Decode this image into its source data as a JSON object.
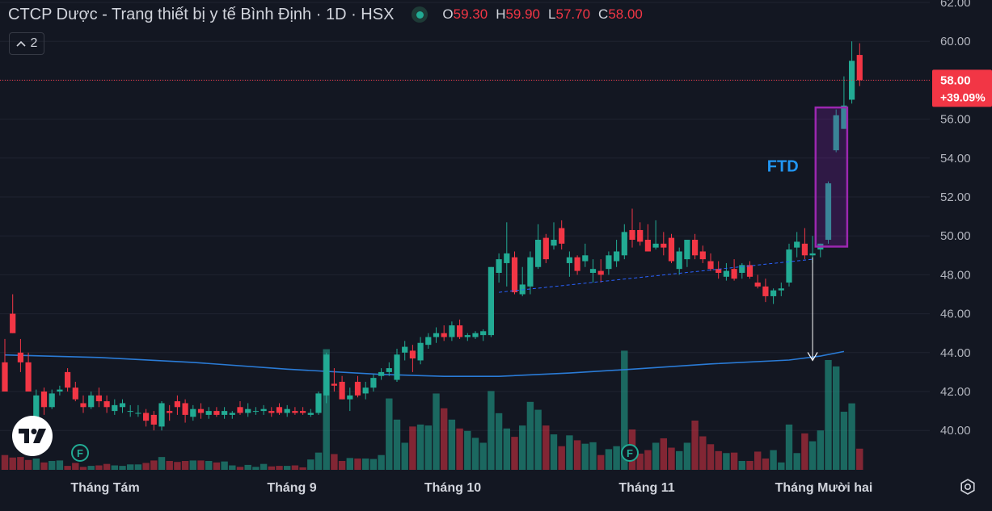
{
  "header": {
    "title": "CTCP Dược - Trang thiết bị y tế Bình Định · 1D · HSX",
    "open_label": "O",
    "open_value": "59.30",
    "high_label": "H",
    "high_value": "59.90",
    "low_label": "L",
    "low_value": "57.70",
    "close_label": "C",
    "close_value": "58.00"
  },
  "toolbar": {
    "collapse_count": "2"
  },
  "chart_data": {
    "type": "candlestick",
    "x_labels": [
      "Tháng Tám",
      "Tháng 9",
      "Tháng 10",
      "Tháng 11",
      "Tháng Mười hai"
    ],
    "ylim": [
      38,
      62
    ],
    "y_ticks": [
      "40.00",
      "42.00",
      "44.00",
      "46.00",
      "48.00",
      "50.00",
      "52.00",
      "54.00",
      "56.00",
      "58.00",
      "60.00",
      "62.00"
    ],
    "last_price": "58.00",
    "last_change": "+39.09%",
    "annotation": "FTD",
    "candles": [
      [
        43.5,
        44.7,
        42.0,
        42.0
      ],
      [
        46.0,
        47.0,
        45.0,
        45.0
      ],
      [
        44.0,
        44.7,
        43.0,
        43.5
      ],
      [
        43.5,
        44.0,
        42.0,
        42.0
      ],
      [
        40.5,
        42.1,
        40.3,
        41.8
      ],
      [
        42.0,
        42.2,
        40.8,
        41.2
      ],
      [
        41.2,
        42.1,
        41.1,
        41.9
      ],
      [
        42.0,
        42.3,
        41.8,
        42.1
      ],
      [
        43.0,
        43.2,
        42.0,
        42.2
      ],
      [
        42.2,
        42.5,
        41.5,
        41.6
      ],
      [
        41.4,
        41.8,
        40.9,
        41.2
      ],
      [
        41.2,
        42.0,
        41.1,
        41.8
      ],
      [
        41.8,
        42.2,
        41.2,
        41.5
      ],
      [
        41.5,
        41.8,
        40.9,
        41.2
      ],
      [
        41.0,
        41.6,
        40.8,
        41.3
      ],
      [
        41.2,
        41.6,
        40.9,
        41.4
      ],
      [
        41.0,
        41.3,
        40.7,
        41.0
      ],
      [
        40.9,
        41.3,
        40.7,
        40.9
      ],
      [
        40.9,
        41.1,
        40.2,
        40.5
      ],
      [
        40.8,
        41.0,
        40.0,
        40.3
      ],
      [
        40.2,
        41.5,
        40.0,
        41.4
      ],
      [
        41.0,
        41.3,
        40.5,
        40.9
      ],
      [
        41.5,
        41.8,
        40.8,
        41.2
      ],
      [
        41.4,
        41.6,
        40.4,
        40.8
      ],
      [
        40.7,
        41.3,
        40.5,
        41.1
      ],
      [
        41.1,
        41.4,
        40.6,
        40.9
      ],
      [
        40.8,
        41.2,
        40.6,
        41.0
      ],
      [
        41.0,
        41.2,
        40.7,
        40.8
      ],
      [
        40.8,
        41.2,
        40.6,
        41.0
      ],
      [
        40.8,
        41.0,
        40.6,
        40.9
      ],
      [
        41.2,
        41.5,
        40.8,
        40.9
      ],
      [
        40.9,
        41.4,
        40.7,
        41.1
      ],
      [
        41.0,
        41.2,
        40.8,
        41.0
      ],
      [
        41.0,
        41.3,
        40.8,
        41.1
      ],
      [
        41.0,
        41.2,
        40.7,
        40.9
      ],
      [
        41.2,
        41.4,
        40.8,
        40.9
      ],
      [
        40.9,
        41.3,
        40.7,
        41.1
      ],
      [
        41.0,
        41.2,
        40.8,
        40.9
      ],
      [
        41.0,
        41.2,
        40.8,
        40.9
      ],
      [
        40.8,
        41.1,
        40.7,
        40.9
      ],
      [
        40.9,
        42.0,
        40.8,
        41.9
      ],
      [
        41.8,
        44.0,
        41.4,
        43.9
      ],
      [
        42.4,
        43.2,
        42.0,
        42.3
      ],
      [
        42.5,
        42.8,
        41.6,
        41.6
      ],
      [
        41.6,
        42.2,
        41.0,
        41.8
      ],
      [
        42.5,
        42.8,
        41.7,
        41.8
      ],
      [
        41.9,
        42.5,
        41.6,
        42.2
      ],
      [
        42.2,
        42.9,
        42.0,
        42.7
      ],
      [
        42.8,
        43.2,
        42.6,
        43.0
      ],
      [
        43.0,
        43.5,
        42.8,
        43.2
      ],
      [
        42.6,
        44.2,
        42.5,
        43.9
      ],
      [
        44.0,
        44.6,
        43.6,
        44.3
      ],
      [
        44.1,
        44.4,
        43.0,
        43.7
      ],
      [
        43.6,
        44.8,
        43.4,
        44.5
      ],
      [
        44.4,
        45.0,
        44.2,
        44.8
      ],
      [
        44.8,
        45.3,
        44.5,
        45.0
      ],
      [
        45.0,
        45.4,
        44.6,
        44.8
      ],
      [
        44.8,
        45.6,
        44.6,
        45.4
      ],
      [
        45.4,
        45.7,
        44.7,
        44.8
      ],
      [
        44.8,
        45.0,
        44.6,
        44.9
      ],
      [
        44.8,
        45.1,
        44.7,
        45.0
      ],
      [
        44.9,
        45.2,
        44.6,
        45.1
      ],
      [
        44.9,
        48.4,
        44.8,
        48.4
      ],
      [
        48.1,
        49.1,
        47.6,
        48.8
      ],
      [
        48.6,
        50.7,
        47.4,
        49.1
      ],
      [
        48.9,
        49.2,
        47.0,
        47.1
      ],
      [
        47.0,
        48.4,
        46.9,
        47.5
      ],
      [
        47.4,
        49.2,
        47.0,
        48.9
      ],
      [
        48.4,
        50.6,
        48.3,
        49.8
      ],
      [
        49.9,
        50.1,
        48.6,
        48.8
      ],
      [
        49.5,
        50.7,
        49.3,
        49.8
      ],
      [
        50.4,
        50.8,
        49.3,
        49.6
      ],
      [
        48.6,
        49.2,
        47.9,
        48.9
      ],
      [
        48.9,
        49.0,
        48.0,
        48.2
      ],
      [
        48.7,
        49.6,
        48.4,
        49.0
      ],
      [
        48.1,
        48.8,
        47.6,
        48.3
      ],
      [
        48.2,
        48.8,
        47.6,
        48.0
      ],
      [
        48.3,
        49.2,
        48.0,
        49.0
      ],
      [
        48.7,
        49.8,
        48.4,
        49.2
      ],
      [
        49.0,
        50.6,
        48.8,
        50.2
      ],
      [
        50.3,
        51.4,
        49.4,
        49.8
      ],
      [
        50.3,
        50.7,
        49.5,
        49.7
      ],
      [
        49.8,
        50.6,
        49.2,
        49.2
      ],
      [
        49.4,
        50.8,
        49.3,
        49.6
      ],
      [
        49.6,
        50.2,
        49.0,
        49.4
      ],
      [
        49.9,
        50.1,
        48.6,
        48.7
      ],
      [
        48.3,
        49.4,
        48.0,
        49.2
      ],
      [
        48.8,
        49.7,
        48.4,
        49.8
      ],
      [
        49.8,
        50.1,
        48.8,
        49.0
      ],
      [
        49.2,
        49.5,
        48.6,
        48.8
      ],
      [
        48.7,
        49.1,
        48.2,
        48.3
      ],
      [
        48.3,
        48.7,
        47.8,
        48.1
      ],
      [
        47.9,
        48.6,
        47.7,
        48.2
      ],
      [
        48.3,
        48.8,
        47.7,
        47.8
      ],
      [
        48.1,
        48.6,
        47.8,
        48.5
      ],
      [
        48.5,
        48.7,
        47.8,
        47.9
      ],
      [
        47.6,
        48.0,
        47.3,
        47.4
      ],
      [
        47.4,
        47.8,
        46.6,
        46.9
      ],
      [
        46.9,
        47.3,
        46.5,
        47.2
      ],
      [
        47.2,
        47.6,
        46.9,
        47.3
      ],
      [
        47.6,
        49.6,
        47.4,
        49.3
      ],
      [
        49.4,
        50.2,
        48.9,
        49.7
      ],
      [
        49.6,
        50.4,
        48.8,
        49.0
      ],
      [
        49.0,
        50.0,
        48.6,
        49.1
      ],
      [
        49.3,
        49.6,
        48.9,
        49.6
      ],
      [
        49.8,
        52.8,
        49.6,
        52.7
      ],
      [
        54.4,
        56.5,
        54.3,
        56.2
      ],
      [
        55.5,
        58.2,
        55.5,
        56.7
      ],
      [
        57.0,
        60.0,
        56.8,
        59.0
      ],
      [
        59.3,
        59.9,
        57.7,
        58.0
      ]
    ],
    "volumes": [
      3.0,
      2.5,
      2.6,
      2.0,
      2.3,
      1.5,
      1.8,
      1.9,
      0.8,
      1.4,
      0.6,
      0.8,
      0.9,
      1.2,
      0.9,
      0.8,
      1.1,
      1.1,
      1.4,
      1.9,
      2.6,
      1.8,
      1.6,
      1.8,
      1.9,
      1.9,
      1.8,
      1.5,
      1.7,
      0.9,
      0.6,
      1.0,
      0.6,
      1.2,
      0.7,
      0.8,
      0.8,
      0.9,
      0.5,
      2.1,
      3.5,
      24.5,
      3.2,
      1.8,
      2.4,
      2.3,
      2.3,
      2.2,
      3.0,
      14.5,
      10.2,
      5.5,
      8.8,
      9.2,
      9.0,
      15.5,
      12.5,
      10.2,
      8.4,
      7.9,
      6.5,
      5.5,
      16.0,
      11.5,
      8.4,
      6.7,
      9.0,
      13.8,
      12.2,
      9.0,
      7.2,
      4.8,
      7.0,
      6.0,
      5.3,
      5.6,
      3.0,
      4.2,
      4.8,
      24.2,
      8.2,
      3.3,
      4.0,
      5.5,
      6.4,
      4.5,
      3.8,
      5.5,
      10.0,
      6.8,
      5.2,
      3.8,
      3.4,
      3.5,
      1.8,
      1.8,
      3.7,
      2.3,
      4.0,
      1.5,
      9.2,
      3.4,
      7.4,
      5.8,
      8.0,
      22.3,
      21.0,
      11.8,
      13.5,
      4.3
    ],
    "ma": [
      [
        0,
        43.88
      ],
      [
        12,
        43.75
      ],
      [
        24,
        43.5
      ],
      [
        36,
        43.15
      ],
      [
        48,
        42.88
      ],
      [
        56,
        42.78
      ],
      [
        63,
        42.78
      ],
      [
        72,
        42.95
      ],
      [
        80,
        43.15
      ],
      [
        90,
        43.42
      ],
      [
        100,
        43.62
      ],
      [
        104,
        43.82
      ],
      [
        107,
        44.06
      ]
    ],
    "trendline": {
      "from": [
        63,
        47.1
      ],
      "to": [
        103,
        48.8
      ]
    },
    "highlight_box": {
      "from_index": 104,
      "to_index": 107,
      "y_low": 49.45,
      "y_high": 56.6
    },
    "arrow": {
      "from_y": 48.9,
      "to_y": 43.6
    }
  }
}
